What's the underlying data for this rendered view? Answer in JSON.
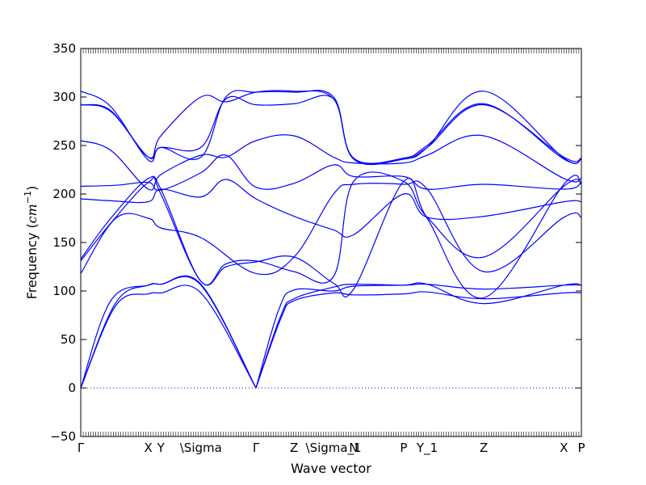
{
  "chart_data": {
    "type": "line",
    "xlabel": "Wave vector",
    "ylabel": "Frequency (",
    "ylabel_unit": "cm",
    "ylabel_exp": "−1",
    "ylabel_close": ")",
    "ylim": [
      -50,
      350
    ],
    "yticks": [
      -50,
      0,
      50,
      100,
      150,
      200,
      250,
      300,
      350
    ],
    "grid": false,
    "line_color": "#0000ff",
    "zero_line_style": "dotted",
    "xticks": [
      {
        "label": "Γ",
        "pos": 0.0
      },
      {
        "label": "X",
        "pos": 0.135
      },
      {
        "label": "Y",
        "pos": 0.16
      },
      {
        "label": "\\Sigma",
        "pos": 0.24
      },
      {
        "label": "Γ",
        "pos": 0.35
      },
      {
        "label": "Z",
        "pos": 0.426
      },
      {
        "label": "\\Sigma_1",
        "pos": 0.505
      },
      {
        "label": "N",
        "pos": 0.545
      },
      {
        "label": "P",
        "pos": 0.645
      },
      {
        "label": "Y_1",
        "pos": 0.692
      },
      {
        "label": "Z",
        "pos": 0.805
      },
      {
        "label": "X",
        "pos": 0.965
      },
      {
        "label": "P",
        "pos": 1.0
      }
    ],
    "series": [
      {
        "x": [
          0,
          0.06,
          0.135,
          0.16,
          0.24,
          0.35
        ],
        "y": [
          0,
          90,
          106,
          107,
          107,
          0
        ]
      },
      {
        "x": [
          0,
          0.07,
          0.135,
          0.16,
          0.24,
          0.35
        ],
        "y": [
          0,
          85,
          97,
          98,
          98,
          0
        ]
      },
      {
        "x": [
          0,
          0.07,
          0.135,
          0.16,
          0.24,
          0.35
        ],
        "y": [
          0,
          88,
          106,
          107,
          106,
          0
        ]
      },
      {
        "x": [
          0.35,
          0.4,
          0.426,
          0.505,
          0.545,
          0.645,
          0.692,
          0.805,
          0.965,
          1.0
        ],
        "y": [
          0,
          75,
          92,
          104,
          107,
          106,
          107,
          102,
          106,
          106
        ]
      },
      {
        "x": [
          0.35,
          0.4,
          0.426,
          0.505,
          0.545,
          0.645,
          0.692,
          0.805,
          0.965,
          1.0
        ],
        "y": [
          0,
          72,
          90,
          98,
          96,
          97,
          99,
          92,
          98,
          98
        ]
      },
      {
        "x": [
          0.35,
          0.395,
          0.426,
          0.505,
          0.545,
          0.645,
          0.692,
          0.805,
          0.965,
          1.0
        ],
        "y": [
          0,
          80,
          101,
          100,
          105,
          106,
          107,
          87,
          106,
          106
        ]
      },
      {
        "x": [
          0,
          0.06,
          0.135,
          0.16,
          0.24,
          0.29,
          0.35,
          0.426,
          0.505,
          0.545,
          0.645,
          0.692,
          0.805,
          0.965,
          1.0
        ],
        "y": [
          133,
          175,
          216,
          200,
          110,
          125,
          130,
          135,
          108,
          102,
          213,
          175,
          93,
          210,
          210
        ]
      },
      {
        "x": [
          0,
          0.06,
          0.135,
          0.16,
          0.24,
          0.29,
          0.35,
          0.426,
          0.505,
          0.545,
          0.645,
          0.692,
          0.805,
          0.965,
          1.0
        ],
        "y": [
          131,
          170,
          212,
          205,
          110,
          128,
          131,
          120,
          115,
          213,
          213,
          176,
          135,
          208,
          212
        ]
      },
      {
        "x": [
          0,
          0.07,
          0.135,
          0.16,
          0.24,
          0.35,
          0.426,
          0.505,
          0.545,
          0.645,
          0.692,
          0.805,
          0.965,
          1.0
        ],
        "y": [
          118,
          175,
          175,
          165,
          155,
          118,
          135,
          200,
          210,
          210,
          205,
          120,
          176,
          176
        ]
      },
      {
        "x": [
          0,
          0.06,
          0.135,
          0.16,
          0.24,
          0.29,
          0.35,
          0.426,
          0.505,
          0.545,
          0.645,
          0.692,
          0.805,
          0.965,
          1.0
        ],
        "y": [
          195,
          193,
          192,
          205,
          197,
          215,
          195,
          177,
          163,
          158,
          200,
          176,
          177,
          192,
          192
        ]
      },
      {
        "x": [
          0,
          0.07,
          0.135,
          0.16,
          0.24,
          0.29,
          0.35,
          0.426,
          0.505,
          0.545,
          0.645,
          0.692,
          0.805,
          0.965,
          1.0
        ],
        "y": [
          208,
          209,
          212,
          204,
          222,
          240,
          207,
          211,
          230,
          218,
          218,
          205,
          210,
          205,
          212
        ]
      },
      {
        "x": [
          0,
          0.06,
          0.135,
          0.16,
          0.24,
          0.29,
          0.35,
          0.426,
          0.505,
          0.545,
          0.645,
          0.692,
          0.805,
          0.965,
          1.0
        ],
        "y": [
          255,
          245,
          205,
          220,
          240,
          238,
          255,
          260,
          238,
          232,
          232,
          240,
          260,
          216,
          216
        ]
      },
      {
        "x": [
          0,
          0.06,
          0.135,
          0.16,
          0.24,
          0.29,
          0.35,
          0.426,
          0.505,
          0.545,
          0.645,
          0.692,
          0.805,
          0.965,
          1.0
        ],
        "y": [
          292,
          285,
          238,
          248,
          248,
          298,
          292,
          293,
          298,
          236,
          236,
          248,
          292,
          238,
          237
        ]
      },
      {
        "x": [
          0,
          0.06,
          0.135,
          0.16,
          0.24,
          0.29,
          0.35,
          0.426,
          0.505,
          0.545,
          0.645,
          0.692,
          0.805,
          0.965,
          1.0
        ],
        "y": [
          306,
          290,
          235,
          248,
          238,
          300,
          305,
          305,
          300,
          236,
          236,
          248,
          306,
          237,
          237
        ]
      },
      {
        "x": [
          0,
          0.06,
          0.135,
          0.16,
          0.24,
          0.29,
          0.35,
          0.426,
          0.505,
          0.545,
          0.645,
          0.692,
          0.805,
          0.965,
          1.0
        ],
        "y": [
          292,
          286,
          238,
          260,
          300,
          295,
          305,
          306,
          298,
          237,
          237,
          250,
          293,
          236,
          236
        ]
      }
    ]
  }
}
